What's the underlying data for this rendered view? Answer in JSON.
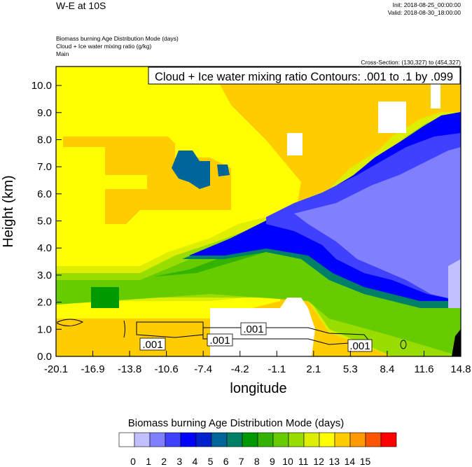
{
  "header": {
    "title": "W-E at 10S",
    "init": "Init: 2018-08-25_00:00:00",
    "valid": "Valid: 2018-08-30_18:00:00",
    "field_lines": [
      "Biomass burning Age Distribution Mode   (days)",
      "Cloud + Ice water mixing ratio   (g/kg)",
      "Main"
    ],
    "cross_section": "Cross-Section: (130,327) to (454,327)"
  },
  "chart_data": {
    "type": "heatmap",
    "title": "W-E at 10S",
    "overlay_label": "Cloud + Ice water mixing ratio Contours: .001 to .1 by .099",
    "xlabel": "longitude",
    "ylabel": "Height (km)",
    "x_ticks": [
      "-20.1",
      "-16.9",
      "-13.8",
      "-10.6",
      "-7.4",
      "-4.2",
      "-1.1",
      "2.1",
      "5.3",
      "8.4",
      "11.6",
      "14.8"
    ],
    "y_ticks": [
      "0.0",
      "1.0",
      "2.0",
      "3.0",
      "4.0",
      "5.0",
      "6.0",
      "7.0",
      "8.0",
      "9.0",
      "10.0"
    ],
    "xlim": [
      -20.1,
      14.8
    ],
    "ylim": [
      0.0,
      10.7
    ],
    "contour_labels": [
      ".001",
      ".001",
      ".001",
      ".001"
    ],
    "colorbar": {
      "title": "Biomass burning Age Distribution Mode  (days)",
      "labels": [
        "0",
        "1",
        "2",
        "3",
        "4",
        "5",
        "6",
        "7",
        "8",
        "9",
        "10",
        "11",
        "12",
        "13",
        "14",
        "15"
      ],
      "colors": [
        "#ffffff",
        "#c0c0ff",
        "#8080ff",
        "#4040ff",
        "#0000ff",
        "#0022cc",
        "#006699",
        "#008066",
        "#009900",
        "#33b300",
        "#66cc00",
        "#99dd00",
        "#ddee00",
        "#ffff00",
        "#ffcc00",
        "#ff9900",
        "#ff5500",
        "#ff0000"
      ]
    }
  }
}
